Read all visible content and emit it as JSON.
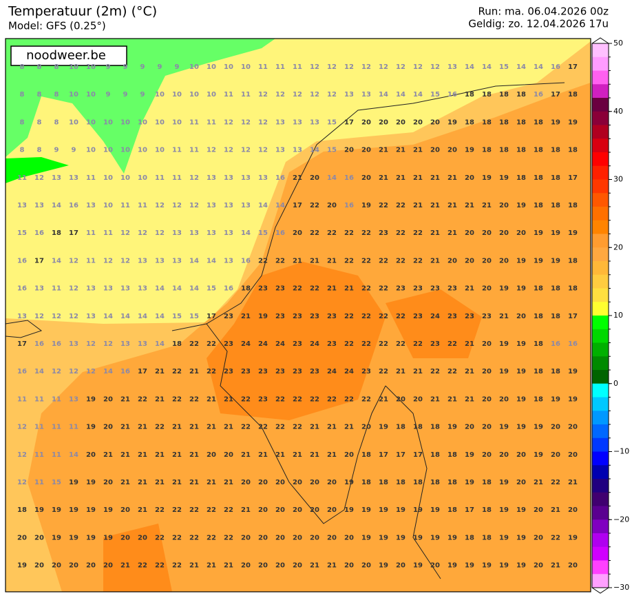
{
  "header": {
    "title": "Temperatuur (2m) (°C)",
    "model": "Model: GFS (0.25°)",
    "run": "Run: ma. 06.04.2026 00z",
    "valid": "Geldig: zo. 12.04.2026 17u"
  },
  "logo": "noodweer.be",
  "grid": {
    "rows": [
      [
        8,
        8,
        8,
        10,
        10,
        9,
        9,
        9,
        9,
        9,
        10,
        10,
        10,
        10,
        11,
        11,
        11,
        12,
        12,
        12,
        12,
        12,
        12,
        12,
        12,
        13,
        14,
        14,
        15,
        14,
        14,
        16,
        17
      ],
      [
        8,
        8,
        8,
        10,
        10,
        9,
        9,
        9,
        10,
        10,
        10,
        10,
        11,
        11,
        12,
        12,
        12,
        12,
        12,
        13,
        13,
        14,
        14,
        14,
        15,
        16,
        18,
        18,
        18,
        18,
        16,
        17,
        18
      ],
      [
        8,
        8,
        8,
        10,
        10,
        10,
        10,
        10,
        10,
        10,
        11,
        11,
        12,
        12,
        12,
        13,
        13,
        13,
        15,
        17,
        20,
        20,
        20,
        20,
        20,
        19,
        18,
        18,
        18,
        18,
        18,
        19,
        19
      ],
      [
        8,
        8,
        9,
        9,
        10,
        10,
        10,
        10,
        10,
        11,
        11,
        12,
        12,
        12,
        12,
        13,
        13,
        14,
        15,
        20,
        20,
        21,
        21,
        21,
        20,
        20,
        19,
        18,
        18,
        18,
        18,
        18,
        18
      ],
      [
        11,
        12,
        13,
        13,
        11,
        10,
        10,
        10,
        11,
        11,
        12,
        13,
        13,
        13,
        13,
        16,
        21,
        20,
        14,
        16,
        20,
        21,
        21,
        21,
        21,
        21,
        20,
        19,
        19,
        18,
        18,
        18,
        17
      ],
      [
        13,
        13,
        14,
        16,
        13,
        10,
        11,
        11,
        12,
        12,
        12,
        13,
        13,
        13,
        14,
        14,
        17,
        22,
        20,
        16,
        19,
        22,
        22,
        21,
        21,
        21,
        21,
        21,
        20,
        19,
        18,
        18,
        18
      ],
      [
        15,
        16,
        18,
        17,
        11,
        11,
        12,
        12,
        12,
        13,
        13,
        13,
        13,
        14,
        15,
        16,
        20,
        22,
        22,
        22,
        22,
        23,
        22,
        22,
        21,
        21,
        20,
        20,
        20,
        20,
        19,
        19,
        19
      ],
      [
        16,
        17,
        14,
        12,
        11,
        12,
        12,
        13,
        13,
        13,
        14,
        14,
        13,
        16,
        22,
        22,
        21,
        21,
        21,
        22,
        22,
        22,
        22,
        22,
        21,
        20,
        20,
        20,
        20,
        19,
        19,
        19,
        18
      ],
      [
        16,
        13,
        11,
        12,
        13,
        13,
        13,
        13,
        14,
        14,
        14,
        15,
        16,
        18,
        23,
        23,
        22,
        22,
        21,
        21,
        22,
        22,
        23,
        23,
        23,
        23,
        21,
        20,
        19,
        19,
        18,
        18,
        18
      ],
      [
        13,
        12,
        12,
        12,
        13,
        14,
        14,
        14,
        14,
        15,
        15,
        17,
        23,
        21,
        19,
        23,
        23,
        23,
        23,
        22,
        22,
        22,
        22,
        23,
        24,
        23,
        23,
        23,
        21,
        20,
        18,
        18,
        17
      ],
      [
        17,
        16,
        16,
        13,
        12,
        12,
        13,
        13,
        14,
        18,
        22,
        22,
        23,
        24,
        24,
        24,
        23,
        24,
        23,
        22,
        22,
        22,
        22,
        22,
        23,
        22,
        21,
        20,
        19,
        19,
        18,
        16,
        16
      ],
      [
        16,
        14,
        12,
        12,
        12,
        14,
        16,
        17,
        21,
        22,
        21,
        22,
        23,
        23,
        23,
        23,
        23,
        23,
        24,
        24,
        23,
        22,
        21,
        21,
        22,
        22,
        21,
        20,
        19,
        19,
        18,
        18,
        19
      ],
      [
        11,
        11,
        11,
        13,
        19,
        20,
        21,
        22,
        21,
        22,
        22,
        21,
        21,
        22,
        23,
        22,
        22,
        22,
        22,
        22,
        22,
        21,
        20,
        20,
        21,
        21,
        21,
        20,
        20,
        19,
        18,
        19,
        19
      ],
      [
        12,
        11,
        11,
        11,
        19,
        20,
        21,
        21,
        22,
        21,
        21,
        21,
        21,
        22,
        22,
        22,
        22,
        21,
        21,
        21,
        20,
        19,
        18,
        18,
        18,
        19,
        20,
        20,
        19,
        19,
        19,
        20,
        20
      ],
      [
        12,
        11,
        11,
        14,
        20,
        21,
        21,
        21,
        21,
        21,
        21,
        20,
        20,
        21,
        21,
        21,
        21,
        21,
        21,
        20,
        18,
        17,
        17,
        17,
        18,
        18,
        19,
        20,
        20,
        20,
        19,
        20,
        20
      ],
      [
        12,
        11,
        15,
        19,
        19,
        20,
        21,
        21,
        21,
        21,
        21,
        21,
        21,
        20,
        20,
        20,
        20,
        20,
        20,
        19,
        18,
        18,
        18,
        18,
        18,
        18,
        19,
        18,
        19,
        20,
        21,
        22,
        21
      ],
      [
        18,
        19,
        19,
        19,
        19,
        19,
        20,
        21,
        22,
        22,
        22,
        22,
        22,
        21,
        20,
        20,
        20,
        20,
        20,
        19,
        19,
        19,
        19,
        19,
        19,
        18,
        17,
        18,
        19,
        19,
        20,
        21,
        20
      ],
      [
        20,
        20,
        19,
        19,
        19,
        19,
        20,
        20,
        22,
        22,
        22,
        22,
        22,
        20,
        20,
        20,
        20,
        20,
        20,
        20,
        19,
        19,
        19,
        19,
        19,
        19,
        18,
        18,
        19,
        19,
        20,
        22,
        19
      ],
      [
        19,
        20,
        20,
        20,
        20,
        20,
        21,
        22,
        22,
        22,
        21,
        21,
        21,
        20,
        20,
        20,
        20,
        21,
        21,
        20,
        20,
        19,
        20,
        19,
        20,
        19,
        19,
        19,
        19,
        19,
        20,
        21,
        20
      ]
    ]
  },
  "colorbar": {
    "lim": [
      -30,
      50
    ],
    "ticks": [
      50,
      40,
      30,
      20,
      10,
      0,
      {
        "value": -10,
        "label": "−10"
      },
      {
        "value": -20,
        "label": "−20"
      },
      {
        "value": -30,
        "label": "−30"
      }
    ],
    "colors": [
      "#ffc0ff",
      "#ff9cff",
      "#ff60f0",
      "#d020c0",
      "#6a0040",
      "#8a0038",
      "#b00020",
      "#d80010",
      "#ff0000",
      "#ff2000",
      "#ff3800",
      "#ff5800",
      "#ff7000",
      "#ff8400",
      "#ff9c30",
      "#ffa840",
      "#ffb838",
      "#ffcc40",
      "#ffe040",
      "#ffff30",
      "#00ff00",
      "#00d800",
      "#00b000",
      "#008a00",
      "#006400",
      "#00ffff",
      "#00c8ff",
      "#0098ff",
      "#0068ff",
      "#0038ff",
      "#0000ff",
      "#0000b0",
      "#200080",
      "#400070",
      "#5a0090",
      "#8000c0",
      "#b000f0",
      "#d000ff",
      "#ff40ff",
      "#ffa0ff"
    ]
  }
}
